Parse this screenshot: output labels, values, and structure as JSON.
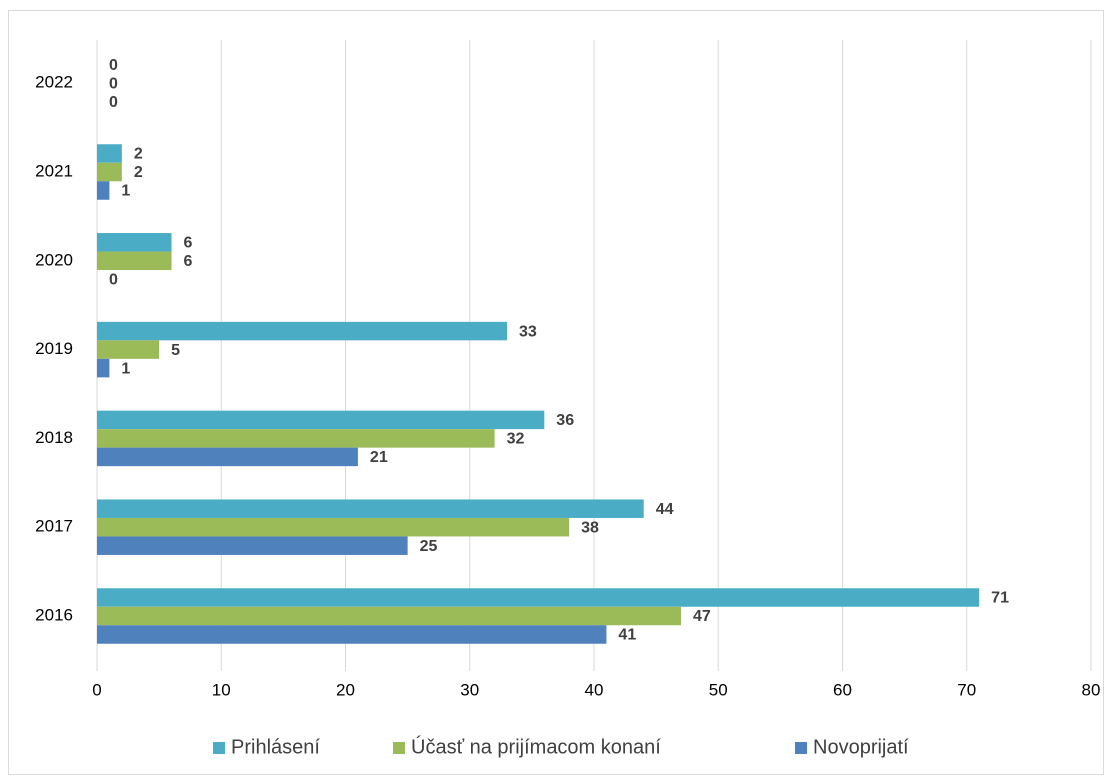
{
  "chart_data": {
    "type": "bar",
    "orientation": "horizontal",
    "categories": [
      "2016",
      "2017",
      "2018",
      "2019",
      "2020",
      "2021",
      "2022"
    ],
    "series": [
      {
        "name": "Prihlásení",
        "color": "#4bacc6",
        "values": [
          71,
          44,
          36,
          33,
          6,
          2,
          0
        ]
      },
      {
        "name": "Účasť na prijímacom konaní",
        "color": "#9bbb59",
        "values": [
          47,
          38,
          32,
          5,
          6,
          2,
          0
        ]
      },
      {
        "name": "Novoprijatí",
        "color": "#4f81bd",
        "values": [
          41,
          25,
          21,
          1,
          0,
          1,
          0
        ]
      }
    ],
    "xlim": [
      0,
      80
    ],
    "xticks": [
      0,
      10,
      20,
      30,
      40,
      50,
      60,
      70,
      80
    ],
    "grid": true,
    "legend": "bottom"
  }
}
